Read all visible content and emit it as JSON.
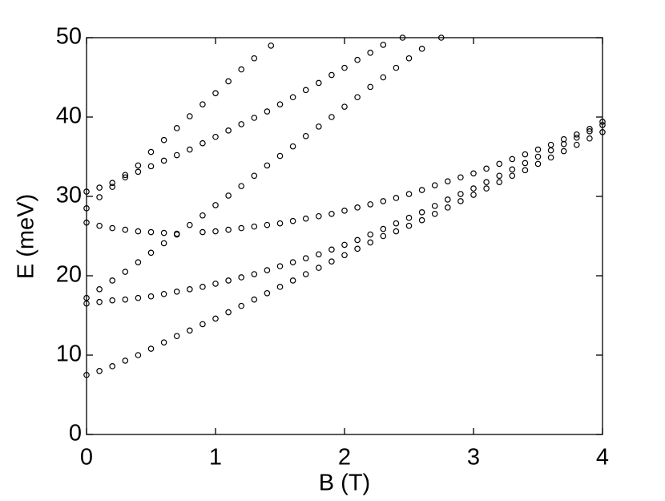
{
  "chart_data": {
    "type": "scatter",
    "xlabel": "B (T)",
    "ylabel": "E (meV)",
    "xlim": [
      0,
      4
    ],
    "ylim": [
      0,
      50
    ],
    "xticks": [
      0,
      1,
      2,
      3,
      4
    ],
    "yticks": [
      0,
      10,
      20,
      30,
      40,
      50
    ],
    "grid": false,
    "marker": "open-circle",
    "series": [
      {
        "color": "#000000",
        "x": [
          0,
          0.1,
          0.2,
          0.3,
          0.4,
          0.5,
          0.6,
          0.7,
          0.8,
          0.9,
          1,
          1.1,
          1.2,
          1.3,
          1.4,
          1.5,
          1.6,
          1.7,
          1.8,
          1.9,
          2,
          2.1,
          2.2,
          2.3,
          2.4,
          2.5,
          2.6,
          2.7,
          2.8,
          2.9,
          3,
          3.1,
          3.2,
          3.3,
          3.4,
          3.5,
          3.6,
          3.7,
          3.8,
          3.9,
          4
        ],
        "values": [
          7.5,
          8.0,
          8.6,
          9.3,
          10.0,
          10.8,
          11.6,
          12.4,
          13.1,
          13.9,
          14.6,
          15.4,
          16.2,
          17.0,
          17.8,
          18.6,
          19.4,
          20.2,
          21.0,
          21.8,
          22.6,
          23.4,
          24.2,
          25.0,
          25.6,
          26.3,
          27.0,
          27.8,
          28.6,
          29.4,
          30.2,
          31.0,
          31.8,
          32.6,
          33.3,
          34.1,
          34.9,
          35.7,
          36.5,
          37.3,
          38.1
        ]
      },
      {
        "color": "#000000",
        "x": [
          0,
          0.1,
          0.2,
          0.3,
          0.4,
          0.5,
          0.6,
          0.7,
          0.8,
          0.9,
          1,
          1.1,
          1.2,
          1.3,
          1.4,
          1.5,
          1.6,
          1.7,
          1.8,
          1.9,
          2,
          2.1,
          2.2,
          2.3,
          2.4,
          2.5,
          2.6,
          2.7,
          2.8,
          2.9,
          3,
          3.1,
          3.2,
          3.3,
          3.4,
          3.5,
          3.6,
          3.7,
          3.8,
          3.9,
          4
        ],
        "values": [
          16.5,
          16.7,
          16.9,
          17.0,
          17.2,
          17.4,
          17.7,
          18.0,
          18.3,
          18.6,
          19.0,
          19.4,
          19.8,
          20.2,
          20.7,
          21.2,
          21.7,
          22.2,
          22.7,
          23.3,
          23.9,
          24.5,
          25.2,
          25.9,
          26.6,
          27.3,
          28.0,
          28.8,
          29.6,
          30.3,
          31.0,
          31.8,
          32.6,
          33.4,
          34.2,
          35.0,
          35.8,
          36.6,
          37.4,
          38.2,
          39.0
        ]
      },
      {
        "color": "#000000",
        "x": [
          0,
          0.1,
          0.2,
          0.3,
          0.4,
          0.5,
          0.6,
          0.7,
          0.8,
          0.9,
          1,
          1.1,
          1.2,
          1.3,
          1.4,
          1.5,
          1.6,
          1.7,
          1.8,
          1.9,
          2,
          2.1,
          2.2,
          2.3,
          2.4,
          2.5,
          2.6,
          2.75
        ],
        "values": [
          17.2,
          18.3,
          19.4,
          20.5,
          21.7,
          22.9,
          24.1,
          25.2,
          26.4,
          27.6,
          28.9,
          30.1,
          31.3,
          32.6,
          33.9,
          35.1,
          36.3,
          37.6,
          38.8,
          40.0,
          41.3,
          42.5,
          43.8,
          45.0,
          46.2,
          47.4,
          48.6,
          50.0
        ]
      },
      {
        "color": "#000000",
        "x": [
          0,
          0.1,
          0.2,
          0.3,
          0.4,
          0.5,
          0.6,
          0.7,
          0.9,
          1,
          1.1,
          1.2,
          1.3,
          1.4,
          1.5,
          1.6,
          1.7,
          1.8,
          1.9,
          2,
          2.1,
          2.2,
          2.3,
          2.4,
          2.5,
          2.6,
          2.7,
          2.8,
          2.9,
          3,
          3.1,
          3.2,
          3.3,
          3.4,
          3.5,
          3.6,
          3.7,
          3.8,
          3.9,
          4
        ],
        "values": [
          26.7,
          26.3,
          26.0,
          25.8,
          25.6,
          25.5,
          25.4,
          25.3,
          25.5,
          25.6,
          25.8,
          26.0,
          26.2,
          26.4,
          26.6,
          26.9,
          27.2,
          27.5,
          27.8,
          28.2,
          28.6,
          29.0,
          29.4,
          29.8,
          30.3,
          30.8,
          31.4,
          31.9,
          32.4,
          32.9,
          33.5,
          34.1,
          34.7,
          35.3,
          35.9,
          36.5,
          37.2,
          37.8,
          38.5,
          39.4
        ]
      },
      {
        "color": "#000000",
        "x": [
          0,
          0.1,
          0.2,
          0.3,
          0.4,
          0.5,
          0.6,
          0.7,
          0.8,
          0.9,
          1,
          1.1,
          1.2,
          1.3,
          1.43
        ],
        "values": [
          28.5,
          29.9,
          31.2,
          32.7,
          33.9,
          35.6,
          37.1,
          38.6,
          40.1,
          41.6,
          43.0,
          44.5,
          46.0,
          47.4,
          49.0
        ]
      },
      {
        "color": "#000000",
        "x": [
          0,
          0.1,
          0.2,
          0.3,
          0.4,
          0.5,
          0.6,
          0.7,
          0.8,
          0.9,
          1,
          1.1,
          1.2,
          1.3,
          1.4,
          1.5,
          1.6,
          1.7,
          1.8,
          1.9,
          2,
          2.1,
          2.2,
          2.3,
          2.45
        ],
        "values": [
          30.6,
          31.1,
          31.7,
          32.4,
          33.1,
          33.8,
          34.5,
          35.2,
          35.9,
          36.7,
          37.5,
          38.3,
          39.1,
          39.9,
          40.7,
          41.6,
          42.5,
          43.4,
          44.3,
          45.3,
          46.2,
          47.2,
          48.1,
          49.1,
          50.0
        ]
      }
    ]
  }
}
